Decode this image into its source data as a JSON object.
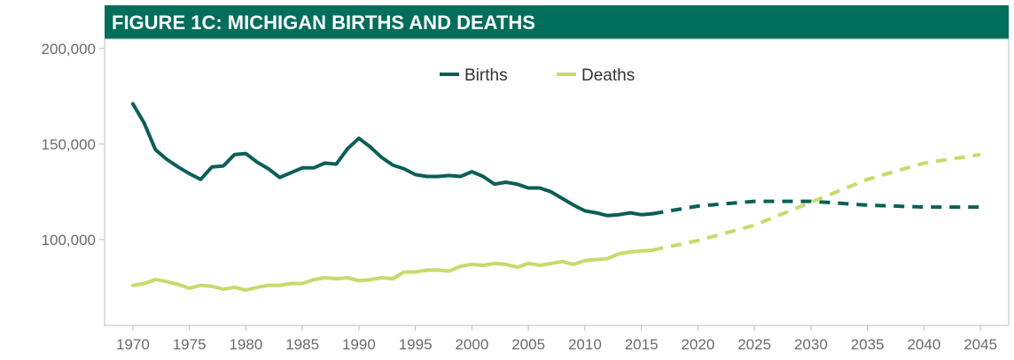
{
  "chart_data": {
    "type": "line",
    "title": "FIGURE 1C: MICHIGAN BIRTHS AND DEATHS",
    "xlabel": "",
    "ylabel": "",
    "xlim": [
      1967.5,
      2047.5
    ],
    "ylim": [
      55000,
      205000
    ],
    "x_ticks": [
      1970,
      1975,
      1980,
      1985,
      1990,
      1995,
      2000,
      2005,
      2010,
      2015,
      2020,
      2025,
      2030,
      2035,
      2040,
      2045
    ],
    "y_ticks": [
      100000,
      150000,
      200000
    ],
    "x_tick_labels": [
      "1970",
      "1975",
      "1980",
      "1985",
      "1990",
      "1995",
      "2000",
      "2005",
      "2010",
      "2015",
      "2020",
      "2025",
      "2030",
      "2035",
      "2040",
      "2045"
    ],
    "y_tick_labels": [
      "100,000",
      "150,000",
      "200,000"
    ],
    "grid": false,
    "legend_position": "top-center",
    "colors": {
      "title_bar": "#006E5B",
      "births": "#0B5F56",
      "deaths": "#C7DB6A",
      "axis": "#bdbdbd",
      "tick_text": "#6b6b6b"
    },
    "series": [
      {
        "name": "Births",
        "color_key": "births",
        "actual": {
          "x": [
            1970,
            1971,
            1972,
            1973,
            1974,
            1975,
            1976,
            1977,
            1978,
            1979,
            1980,
            1981,
            1982,
            1983,
            1984,
            1985,
            1986,
            1987,
            1988,
            1989,
            1990,
            1991,
            1992,
            1993,
            1994,
            1995,
            1996,
            1997,
            1998,
            1999,
            2000,
            2001,
            2002,
            2003,
            2004,
            2005,
            2006,
            2007,
            2008,
            2009,
            2010,
            2011,
            2012,
            2013,
            2014,
            2015,
            2016
          ],
          "y": [
            171000,
            161000,
            147000,
            142000,
            138000,
            134500,
            131500,
            138000,
            138500,
            144500,
            145000,
            140500,
            137000,
            132500,
            135000,
            137500,
            137500,
            140000,
            139500,
            147500,
            153000,
            148500,
            143000,
            139000,
            137000,
            134000,
            133000,
            133000,
            133500,
            133000,
            135500,
            133000,
            129000,
            130000,
            129000,
            127000,
            127000,
            125000,
            121500,
            118000,
            115000,
            114000,
            112500,
            113000,
            114000,
            113000,
            113500
          ]
        },
        "projected": {
          "x": [
            2016,
            2020,
            2025,
            2030,
            2035,
            2040,
            2045
          ],
          "y": [
            113500,
            117500,
            120000,
            120000,
            118000,
            117000,
            117000
          ]
        }
      },
      {
        "name": "Deaths",
        "color_key": "deaths",
        "actual": {
          "x": [
            1970,
            1971,
            1972,
            1973,
            1974,
            1975,
            1976,
            1977,
            1978,
            1979,
            1980,
            1981,
            1982,
            1983,
            1984,
            1985,
            1986,
            1987,
            1988,
            1989,
            1990,
            1991,
            1992,
            1993,
            1994,
            1995,
            1996,
            1997,
            1998,
            1999,
            2000,
            2001,
            2002,
            2003,
            2004,
            2005,
            2006,
            2007,
            2008,
            2009,
            2010,
            2011,
            2012,
            2013,
            2014,
            2015,
            2016
          ],
          "y": [
            76000,
            77000,
            79000,
            78000,
            76500,
            74500,
            76000,
            75500,
            74000,
            75000,
            73500,
            75000,
            76000,
            76000,
            77000,
            77000,
            79000,
            80000,
            79500,
            80000,
            78500,
            79000,
            80000,
            79500,
            83000,
            83000,
            84000,
            84000,
            83500,
            86000,
            87000,
            86500,
            87500,
            87000,
            85500,
            87500,
            86500,
            87500,
            88500,
            87000,
            89000,
            89500,
            90000,
            92500,
            93500,
            94000,
            94500
          ]
        },
        "projected": {
          "x": [
            2016,
            2020,
            2025,
            2030,
            2035,
            2040,
            2045
          ],
          "y": [
            94500,
            99500,
            107500,
            119500,
            131500,
            140000,
            144500
          ]
        }
      }
    ]
  }
}
